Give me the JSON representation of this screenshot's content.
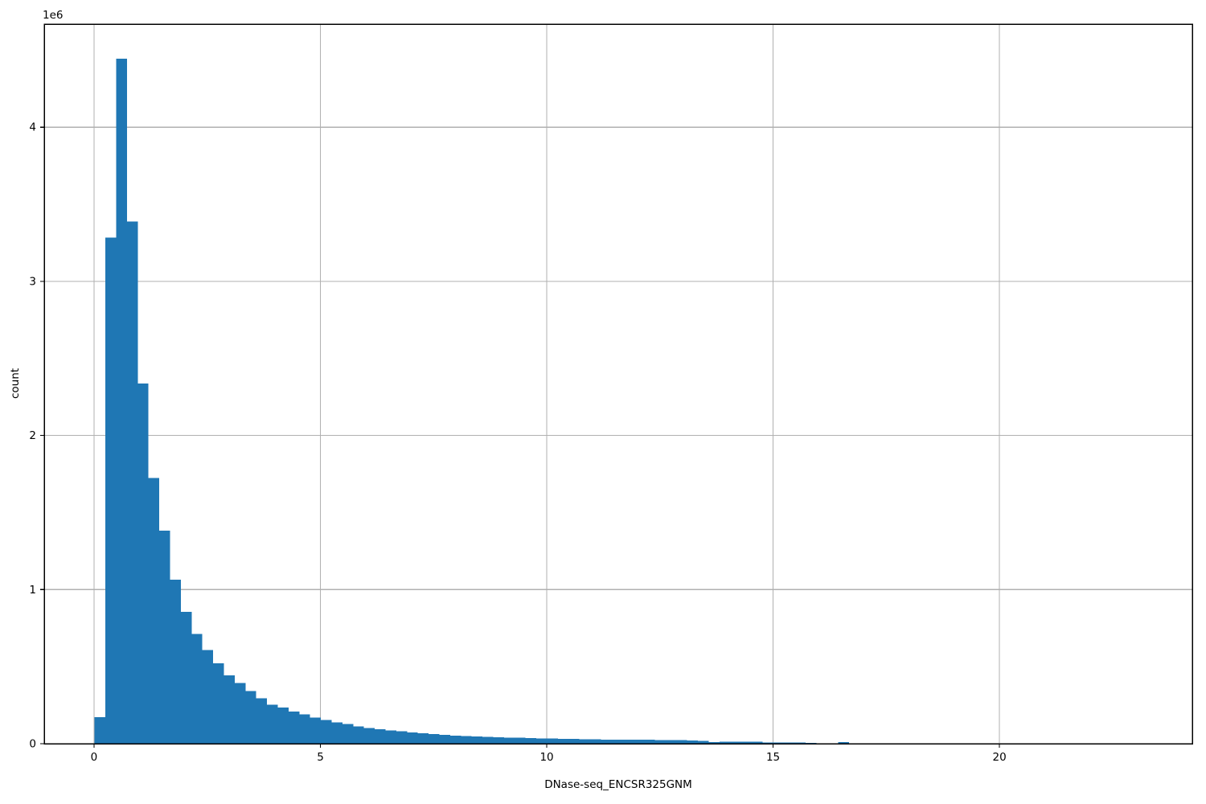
{
  "figure": {
    "background": "#ffffff"
  },
  "chart_data": {
    "type": "bar",
    "subtype": "histogram",
    "title": "",
    "xlabel": "DNase-seq_ENCSR325GNM",
    "ylabel": "count",
    "y_axis_offset_text": "1e6",
    "bar_color": "#1f77b4",
    "grid": true,
    "grid_color": "#b0b0b0",
    "spine_color": "#000000",
    "tick_color": "#000000",
    "text_color": "#000000",
    "legend_position": "none",
    "xlim": [
      -1.1,
      24.26
    ],
    "ylim": [
      0,
      4669000
    ],
    "x_ticks": [
      0,
      5,
      10,
      15,
      20
    ],
    "x_tick_labels": [
      "0",
      "5",
      "10",
      "15",
      "20"
    ],
    "y_ticks": [
      0,
      1000000,
      2000000,
      3000000,
      4000000
    ],
    "y_tick_labels": [
      "0",
      "1",
      "2",
      "3",
      "4"
    ],
    "bins": {
      "start": 0.0125,
      "width": 0.238
    },
    "counts": [
      171000,
      3284000,
      4444000,
      3388000,
      2337000,
      1725000,
      1383000,
      1064000,
      856000,
      713000,
      609000,
      522000,
      443000,
      395000,
      343000,
      296000,
      252000,
      235000,
      209000,
      191000,
      169000,
      153000,
      139000,
      127000,
      113000,
      103000,
      94000,
      87000,
      80000,
      73000,
      68000,
      63000,
      57000,
      53000,
      50000,
      47000,
      44000,
      42000,
      40000,
      38000,
      36000,
      35000,
      33000,
      32000,
      30000,
      29000,
      28000,
      27000,
      26000,
      26000,
      25000,
      25000,
      24000,
      24000,
      23000,
      21000,
      17000,
      10000,
      12000,
      12000,
      12000,
      12000,
      8000,
      7000,
      7000,
      7000,
      6000,
      0,
      0,
      10000
    ]
  }
}
